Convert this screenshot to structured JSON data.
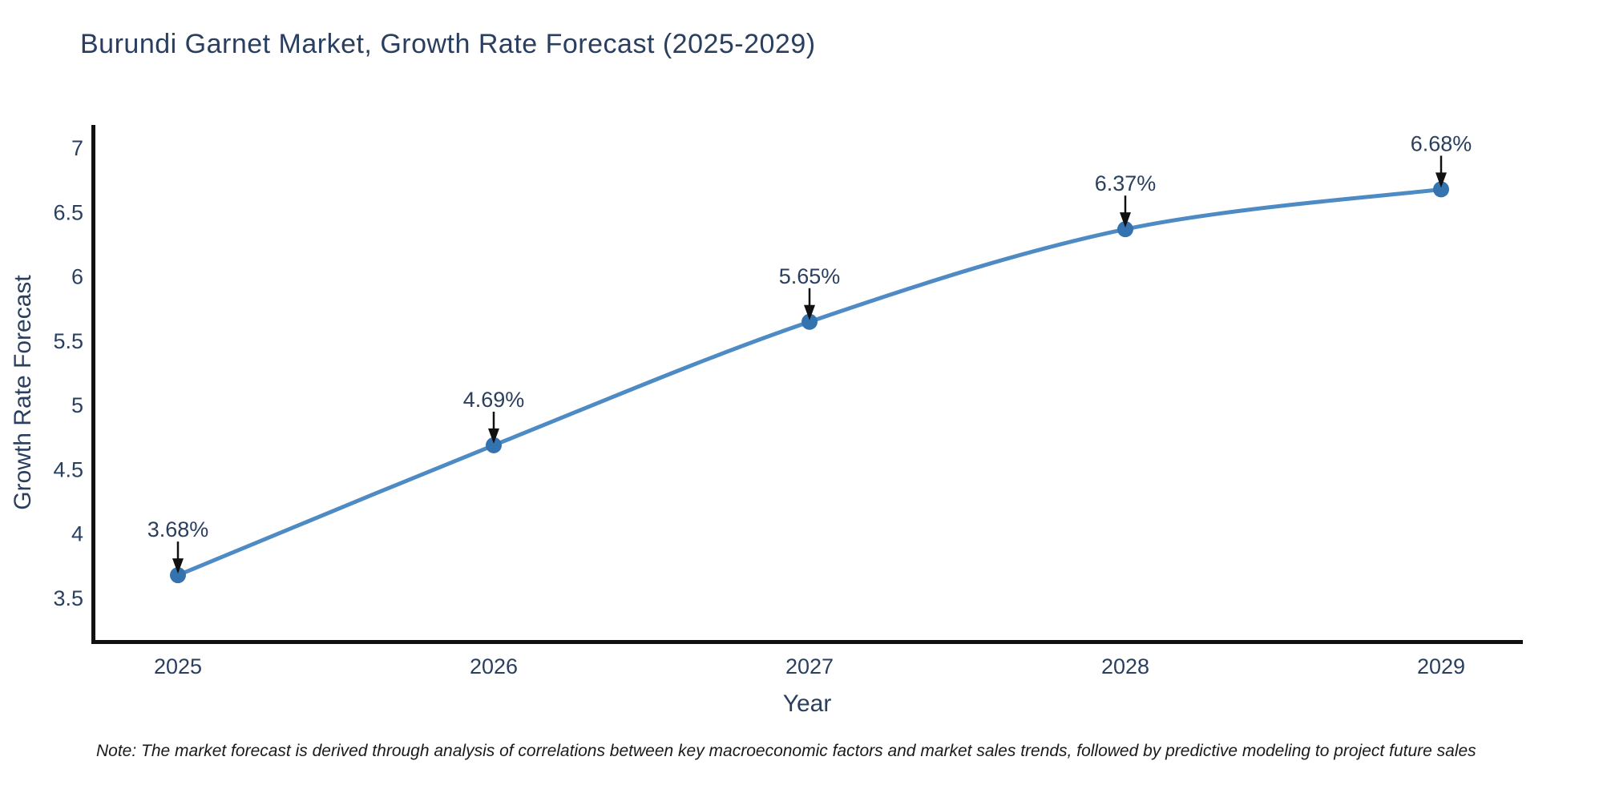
{
  "chart": {
    "title": "Burundi Garnet Market, Growth Rate Forecast (2025-2029)",
    "note": "Note: The market forecast is derived through analysis of correlations between key macroeconomic factors and market sales trends, followed by predictive modeling to project future sales"
  },
  "chart_data": {
    "type": "line",
    "title": "Burundi Garnet Market, Growth Rate Forecast (2025-2029)",
    "xlabel": "Year",
    "ylabel": "Growth Rate Forecast",
    "x": [
      2025,
      2026,
      2027,
      2028,
      2029
    ],
    "y": [
      3.68,
      4.69,
      5.65,
      6.37,
      6.68
    ],
    "point_labels": [
      "3.68%",
      "4.69%",
      "5.65%",
      "6.37%",
      "6.68%"
    ],
    "yticks": [
      3.5,
      4,
      4.5,
      5,
      5.5,
      6,
      6.5,
      7
    ],
    "ylim": [
      3.16,
      7.17
    ],
    "grid": false,
    "legend": "none",
    "line_shape": "spline",
    "annotation_style": "label-above-with-down-arrow",
    "colors": {
      "line": "#4e8bc4",
      "marker": "#3572b0",
      "axis": "#111111",
      "text": "#2a3f5f",
      "arrow": "#111111",
      "note_text": "#1a1a1a"
    }
  }
}
